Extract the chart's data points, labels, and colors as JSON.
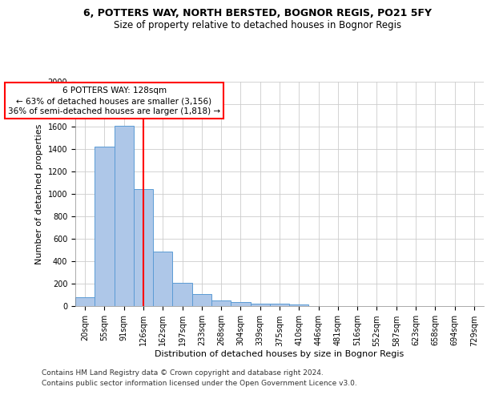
{
  "title1": "6, POTTERS WAY, NORTH BERSTED, BOGNOR REGIS, PO21 5FY",
  "title2": "Size of property relative to detached houses in Bognor Regis",
  "xlabel": "Distribution of detached houses by size in Bognor Regis",
  "ylabel": "Number of detached properties",
  "categories": [
    "20sqm",
    "55sqm",
    "91sqm",
    "126sqm",
    "162sqm",
    "197sqm",
    "233sqm",
    "268sqm",
    "304sqm",
    "339sqm",
    "375sqm",
    "410sqm",
    "446sqm",
    "481sqm",
    "516sqm",
    "552sqm",
    "587sqm",
    "623sqm",
    "658sqm",
    "694sqm",
    "729sqm"
  ],
  "values": [
    80,
    1420,
    1610,
    1045,
    485,
    205,
    105,
    47,
    38,
    23,
    20,
    12,
    0,
    0,
    0,
    0,
    0,
    0,
    0,
    0,
    0
  ],
  "bar_color": "#aec7e8",
  "bar_edge_color": "#5b9bd5",
  "annotation_text": "6 POTTERS WAY: 128sqm\n← 63% of detached houses are smaller (3,156)\n36% of semi-detached houses are larger (1,818) →",
  "annotation_box_color": "white",
  "annotation_box_edge_color": "red",
  "vline_color": "red",
  "vline_x": 3.0,
  "ylim": [
    0,
    2000
  ],
  "yticks": [
    0,
    200,
    400,
    600,
    800,
    1000,
    1200,
    1400,
    1600,
    1800,
    2000
  ],
  "background_color": "white",
  "grid_color": "#cccccc",
  "footer1": "Contains HM Land Registry data © Crown copyright and database right 2024.",
  "footer2": "Contains public sector information licensed under the Open Government Licence v3.0.",
  "title1_fontsize": 9,
  "title2_fontsize": 8.5,
  "xlabel_fontsize": 8,
  "ylabel_fontsize": 8,
  "tick_fontsize": 7,
  "annot_fontsize": 7.5,
  "footer_fontsize": 6.5
}
